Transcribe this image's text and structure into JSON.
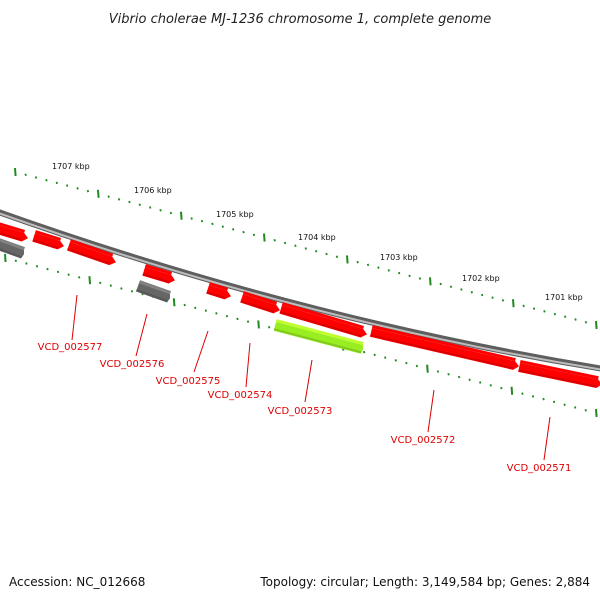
{
  "title": "Vibrio cholerae MJ-1236 chromosome 1, complete genome",
  "footer": {
    "accession": "Accession: NC_012668",
    "summary": "Topology: circular; Length: 3,149,584 bp; Genes: 2,884"
  },
  "ruler": {
    "labels": [
      "1707 kbp",
      "1706 kbp",
      "1705 kbp",
      "1704 kbp",
      "1703 kbp",
      "1702 kbp",
      "1701 kbp"
    ]
  },
  "genes": [
    {
      "id": "VCD_002577",
      "strand": "forward",
      "color": "#ff0000"
    },
    {
      "id": "VCD_002576",
      "strand": "reverse",
      "color": "#666666"
    },
    {
      "id": "VCD_002575",
      "strand": "forward",
      "color": "#ff0000"
    },
    {
      "id": "VCD_002574",
      "strand": "forward",
      "color": "#ff0000"
    },
    {
      "id": "VCD_002573",
      "strand": "reverse",
      "color": "#99ee22"
    },
    {
      "id": "VCD_002572",
      "strand": "forward",
      "color": "#ff0000"
    },
    {
      "id": "VCD_002571",
      "strand": "forward",
      "color": "#ff0000"
    }
  ],
  "colors": {
    "backbone": "#7a7a7a",
    "ticks": "#1f8a1f",
    "label": "#dd0000"
  }
}
